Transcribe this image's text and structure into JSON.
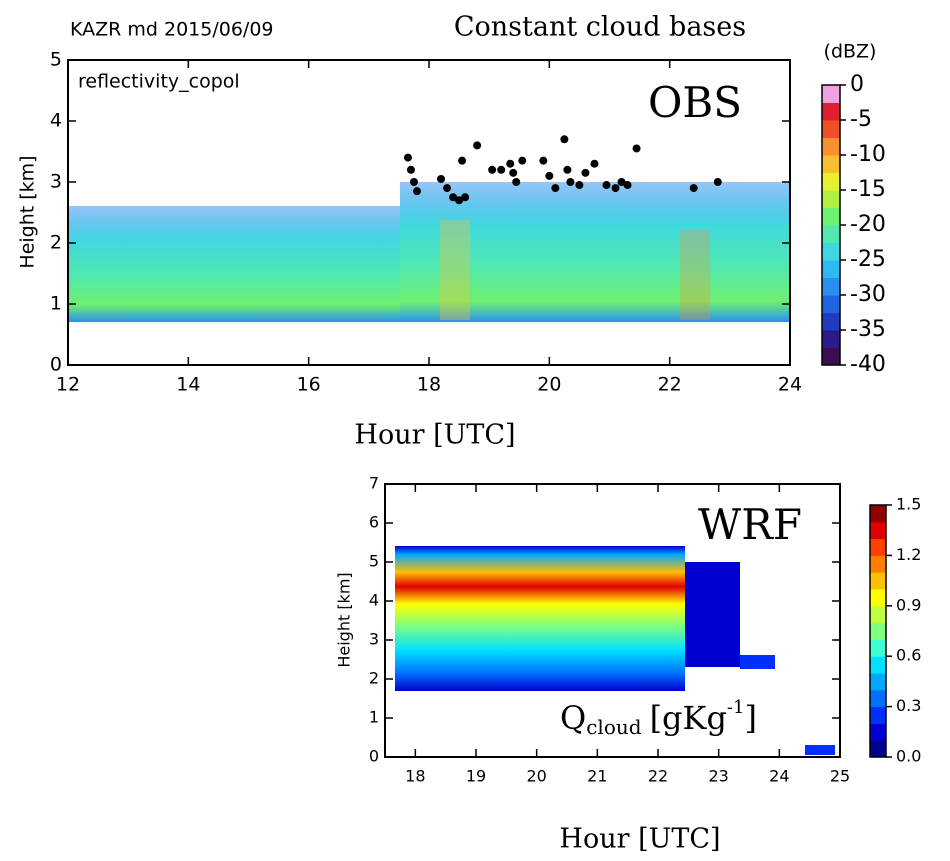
{
  "chart_data": [
    {
      "type": "scatter",
      "title": "Constant cloud bases",
      "label": "KAZR md 2015/06/09",
      "variable": "reflectivity_copol",
      "annotation": "OBS",
      "xlabel": "Hour [UTC]",
      "ylabel": "Height [km]",
      "xlim": [
        12,
        24
      ],
      "xticks": [
        12,
        14,
        16,
        18,
        20,
        22,
        24
      ],
      "ylim": [
        0,
        5
      ],
      "yticks": [
        0,
        1,
        2,
        3,
        4,
        5
      ],
      "color": "#000000",
      "x": [
        17.65,
        17.7,
        17.75,
        17.8,
        18.2,
        18.3,
        18.4,
        18.5,
        18.6,
        18.55,
        18.8,
        19.05,
        19.2,
        19.35,
        19.4,
        19.45,
        19.55,
        19.9,
        20.0,
        20.1,
        20.25,
        20.3,
        20.35,
        20.5,
        20.6,
        20.75,
        20.95,
        21.1,
        21.2,
        21.3,
        21.45,
        22.4,
        22.8
      ],
      "values": [
        3.4,
        3.2,
        3.0,
        2.85,
        3.05,
        2.9,
        2.75,
        2.7,
        2.75,
        3.35,
        3.6,
        3.2,
        3.2,
        3.3,
        3.15,
        3.0,
        3.35,
        3.35,
        3.1,
        2.9,
        3.7,
        3.2,
        3.0,
        2.95,
        3.15,
        3.3,
        2.95,
        2.9,
        3.0,
        2.95,
        3.55,
        2.9,
        3.0
      ],
      "colorbar": {
        "label": "(dBZ)",
        "lim": [
          -40,
          0
        ],
        "ticks": [
          0,
          -5,
          -10,
          -15,
          -20,
          -25,
          -30,
          -35,
          -40
        ],
        "colors": [
          "#3b0f4f",
          "#2a1a8a",
          "#1f3cc0",
          "#1f64e0",
          "#2a90f0",
          "#30b8f0",
          "#40d8e0",
          "#50e8b0",
          "#70f070",
          "#b0f040",
          "#e8f030",
          "#f8c030",
          "#f89030",
          "#f05028",
          "#e02030",
          "#f0a0e0"
        ]
      }
    },
    {
      "type": "heatmap",
      "annotation": "WRF",
      "quantity": {
        "symbol": "Q",
        "sub": "cloud",
        "unit": "[gKg",
        "sup": "-1",
        "close": "]"
      },
      "xlabel": "Hour [UTC]",
      "ylabel": "Height [km]",
      "xlim": [
        17.5,
        25
      ],
      "xticks": [
        18,
        19,
        20,
        21,
        22,
        23,
        24,
        25
      ],
      "ylim": [
        0,
        7
      ],
      "yticks": [
        0,
        1,
        2,
        3,
        4,
        5,
        6,
        7
      ],
      "colorbar": {
        "lim": [
          0,
          1.5
        ],
        "ticks": [
          {
            "value": 0,
            "label": "0.0"
          },
          {
            "value": 0.3,
            "label": "0.3"
          },
          {
            "value": 0.6,
            "label": "0.6"
          },
          {
            "value": 0.9,
            "label": "0.9"
          },
          {
            "value": 1.2,
            "label": "1.2"
          },
          1.5
        ],
        "colors": [
          "#00008f",
          "#0000d0",
          "#0030ff",
          "#0070ff",
          "#00a8ff",
          "#00e0ff",
          "#40ffd0",
          "#80ff80",
          "#c0ff40",
          "#ffff00",
          "#ffc000",
          "#ff8000",
          "#ff4000",
          "#e00000",
          "#900000"
        ]
      }
    }
  ]
}
